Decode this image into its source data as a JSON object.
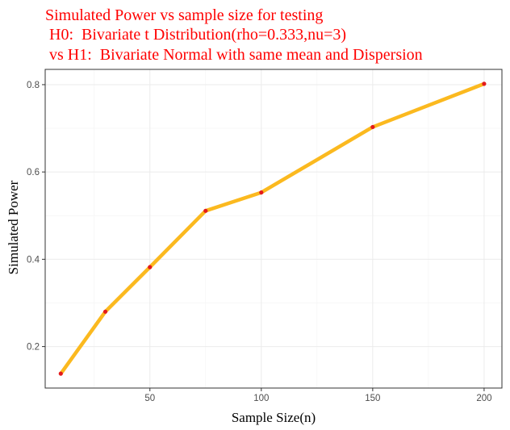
{
  "chart_data": {
    "type": "line",
    "title_lines": [
      "Simulated Power vs sample size for testing",
      " H0:  Bivariate t Distribution(rho=0.333,nu=3)",
      " vs H1:  Bivariate Normal with same mean and Dispersion"
    ],
    "xlabel": "Sample Size(n)",
    "ylabel": "Simulated Power",
    "x": [
      10,
      30,
      50,
      75,
      100,
      150,
      200
    ],
    "series": [
      {
        "values": [
          0.138,
          0.28,
          0.382,
          0.511,
          0.553,
          0.703,
          0.802
        ]
      }
    ],
    "xlim": [
      3,
      208
    ],
    "ylim": [
      0.105,
      0.835
    ],
    "x_ticks": [
      50,
      100,
      150,
      200
    ],
    "y_ticks": [
      0.2,
      0.4,
      0.6,
      0.8
    ],
    "x_tick_labels": [
      "50",
      "100",
      "150",
      "200"
    ],
    "y_tick_labels": [
      "0.2",
      "0.4",
      "0.6",
      "0.8"
    ],
    "line_color": "#fbb91f",
    "point_color": "#e31a1c",
    "grid": true,
    "legend": "none"
  }
}
